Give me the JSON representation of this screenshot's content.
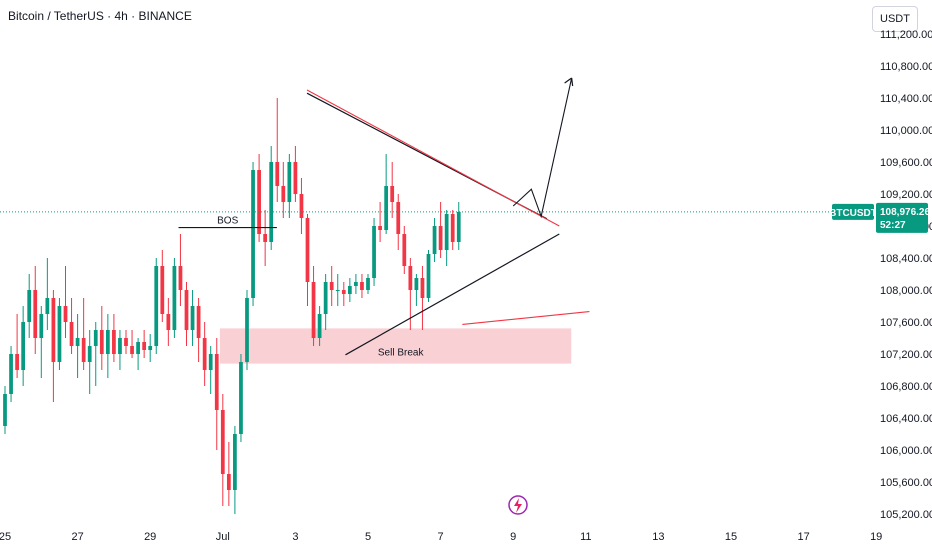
{
  "header": {
    "title": "Bitcoin / TetherUS · 4h · BINANCE",
    "unit_button": "USDT"
  },
  "colors": {
    "up": "#089981",
    "down": "#f23645",
    "zone": "#f7c4c8",
    "triangle": "#131722",
    "resistance": "#f23645",
    "price_line": "#089981",
    "logo": "#9c27b0"
  },
  "chart_data": {
    "type": "candlestick",
    "symbol": "BTCUSDT",
    "timeframe": "4h",
    "y_ticks": [
      "105,200.00",
      "105,600.00",
      "106,000.00",
      "106,400.00",
      "106,800.00",
      "107,200.00",
      "107,600.00",
      "108,000.00",
      "108,400.00",
      "108,800.00",
      "109,200.00",
      "109,600.00",
      "110,000.00",
      "110,400.00",
      "110,800.00",
      "111,200.00"
    ],
    "ylim": [
      105150,
      111250
    ],
    "x_ticks": [
      {
        "label": "25",
        "day": 0
      },
      {
        "label": "27",
        "day": 2
      },
      {
        "label": "29",
        "day": 4
      },
      {
        "label": "Jul",
        "day": 6
      },
      {
        "label": "3",
        "day": 8
      },
      {
        "label": "5",
        "day": 10
      },
      {
        "label": "7",
        "day": 12
      },
      {
        "label": "9",
        "day": 14
      },
      {
        "label": "11",
        "day": 16
      },
      {
        "label": "13",
        "day": 18
      },
      {
        "label": "15",
        "day": 20
      },
      {
        "label": "17",
        "day": 22
      },
      {
        "label": "19",
        "day": 24
      }
    ],
    "last_price": {
      "symbol": "BTCUSDT",
      "price": "108,976.26",
      "countdown": "52:27",
      "value": 108976.26
    },
    "candles": [
      [
        106300,
        106800,
        106200,
        106700
      ],
      [
        106700,
        107300,
        106600,
        107200
      ],
      [
        107200,
        107700,
        106900,
        107000
      ],
      [
        107000,
        107800,
        106800,
        107600
      ],
      [
        107600,
        108200,
        107400,
        108000
      ],
      [
        108000,
        108300,
        107200,
        107400
      ],
      [
        107400,
        107800,
        106900,
        107700
      ],
      [
        107700,
        108400,
        107500,
        107900
      ],
      [
        107900,
        108000,
        106600,
        107100
      ],
      [
        107100,
        107900,
        107000,
        107800
      ],
      [
        107800,
        108300,
        107400,
        107600
      ],
      [
        107600,
        107900,
        107200,
        107300
      ],
      [
        107300,
        107700,
        106900,
        107400
      ],
      [
        107400,
        107900,
        107000,
        107100
      ],
      [
        107100,
        107500,
        106700,
        107300
      ],
      [
        107300,
        107600,
        106800,
        107500
      ],
      [
        107500,
        107800,
        107000,
        107200
      ],
      [
        107200,
        107700,
        106900,
        107500
      ],
      [
        107500,
        107700,
        107100,
        107200
      ],
      [
        107200,
        107500,
        107000,
        107400
      ],
      [
        107400,
        107500,
        107200,
        107300
      ],
      [
        107300,
        107500,
        107150,
        107200
      ],
      [
        107200,
        107400,
        107000,
        107350
      ],
      [
        107350,
        107500,
        107150,
        107250
      ],
      [
        107250,
        107450,
        107100,
        107300
      ],
      [
        107300,
        108400,
        107200,
        108300
      ],
      [
        108300,
        108500,
        107600,
        107700
      ],
      [
        107700,
        107900,
        107300,
        107500
      ],
      [
        107500,
        108400,
        107400,
        108300
      ],
      [
        108300,
        108700,
        107800,
        108000
      ],
      [
        108000,
        108100,
        107300,
        107500
      ],
      [
        107500,
        108000,
        107300,
        107800
      ],
      [
        107800,
        107900,
        107100,
        107400
      ],
      [
        107400,
        107600,
        106800,
        107000
      ],
      [
        107000,
        107300,
        106700,
        107200
      ],
      [
        107200,
        107400,
        106000,
        106500
      ],
      [
        106500,
        106700,
        105300,
        105700
      ],
      [
        105700,
        106100,
        105300,
        105500
      ],
      [
        105500,
        106300,
        105200,
        106200
      ],
      [
        106200,
        107200,
        106100,
        107100
      ],
      [
        107100,
        108000,
        107000,
        107900
      ],
      [
        107900,
        109600,
        107800,
        109500
      ],
      [
        109500,
        109700,
        108600,
        108700
      ],
      [
        108700,
        109000,
        108300,
        108600
      ],
      [
        108600,
        109800,
        108500,
        109600
      ],
      [
        109600,
        110400,
        109100,
        109300
      ],
      [
        109300,
        109600,
        108900,
        109100
      ],
      [
        109100,
        109700,
        108900,
        109600
      ],
      [
        109600,
        109800,
        109100,
        109200
      ],
      [
        109200,
        109400,
        108700,
        108900
      ],
      [
        108900,
        108950,
        107800,
        108100
      ],
      [
        108100,
        108300,
        107300,
        107400
      ],
      [
        107400,
        107800,
        107300,
        107700
      ],
      [
        107700,
        108200,
        107500,
        108100
      ],
      [
        108100,
        108300,
        107800,
        108000
      ],
      [
        108000,
        108200,
        107800,
        108000
      ],
      [
        108000,
        108100,
        107800,
        107950
      ],
      [
        107950,
        108150,
        107850,
        108050
      ],
      [
        108050,
        108200,
        107950,
        108100
      ],
      [
        108100,
        108200,
        107900,
        108000
      ],
      [
        108000,
        108200,
        107950,
        108150
      ],
      [
        108150,
        108900,
        108050,
        108800
      ],
      [
        108800,
        109100,
        108600,
        108750
      ],
      [
        108750,
        109700,
        108700,
        109300
      ],
      [
        109300,
        109600,
        108900,
        109100
      ],
      [
        109100,
        109200,
        108500,
        108700
      ],
      [
        108700,
        108800,
        108200,
        108300
      ],
      [
        108300,
        108400,
        107500,
        108000
      ],
      [
        108000,
        108200,
        107800,
        108150
      ],
      [
        108150,
        108300,
        107500,
        107900
      ],
      [
        107900,
        108500,
        107850,
        108450
      ],
      [
        108450,
        108900,
        108350,
        108800
      ],
      [
        108800,
        109100,
        108400,
        108500
      ],
      [
        108500,
        109000,
        108300,
        108950
      ],
      [
        108950,
        109000,
        108500,
        108600
      ],
      [
        108600,
        109100,
        108500,
        108976
      ]
    ],
    "annotations": {
      "bos_label": "BOS",
      "zone_label": "Sell Break"
    }
  }
}
